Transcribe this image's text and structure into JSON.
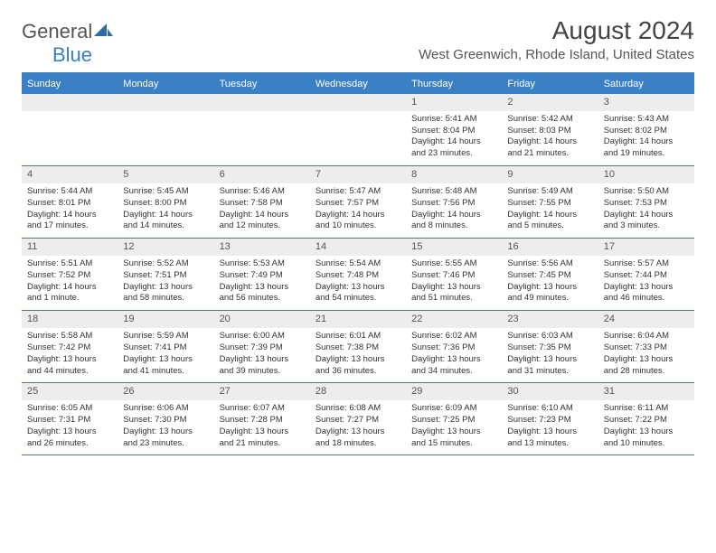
{
  "brand": {
    "part1": "General",
    "part2": "Blue"
  },
  "title": "August 2024",
  "location": "West Greenwich, Rhode Island, United States",
  "colors": {
    "header_bg": "#3b7fc4",
    "header_text": "#ffffff",
    "daynum_bg": "#ededed",
    "border": "#3b7fc4",
    "body_text": "#333333",
    "logo_gray": "#555555",
    "logo_blue": "#3a7fbf"
  },
  "day_names": [
    "Sunday",
    "Monday",
    "Tuesday",
    "Wednesday",
    "Thursday",
    "Friday",
    "Saturday"
  ],
  "weeks": [
    [
      {
        "n": "",
        "sunrise": "",
        "sunset": "",
        "daylight": ""
      },
      {
        "n": "",
        "sunrise": "",
        "sunset": "",
        "daylight": ""
      },
      {
        "n": "",
        "sunrise": "",
        "sunset": "",
        "daylight": ""
      },
      {
        "n": "",
        "sunrise": "",
        "sunset": "",
        "daylight": ""
      },
      {
        "n": "1",
        "sunrise": "Sunrise: 5:41 AM",
        "sunset": "Sunset: 8:04 PM",
        "daylight": "Daylight: 14 hours and 23 minutes."
      },
      {
        "n": "2",
        "sunrise": "Sunrise: 5:42 AM",
        "sunset": "Sunset: 8:03 PM",
        "daylight": "Daylight: 14 hours and 21 minutes."
      },
      {
        "n": "3",
        "sunrise": "Sunrise: 5:43 AM",
        "sunset": "Sunset: 8:02 PM",
        "daylight": "Daylight: 14 hours and 19 minutes."
      }
    ],
    [
      {
        "n": "4",
        "sunrise": "Sunrise: 5:44 AM",
        "sunset": "Sunset: 8:01 PM",
        "daylight": "Daylight: 14 hours and 17 minutes."
      },
      {
        "n": "5",
        "sunrise": "Sunrise: 5:45 AM",
        "sunset": "Sunset: 8:00 PM",
        "daylight": "Daylight: 14 hours and 14 minutes."
      },
      {
        "n": "6",
        "sunrise": "Sunrise: 5:46 AM",
        "sunset": "Sunset: 7:58 PM",
        "daylight": "Daylight: 14 hours and 12 minutes."
      },
      {
        "n": "7",
        "sunrise": "Sunrise: 5:47 AM",
        "sunset": "Sunset: 7:57 PM",
        "daylight": "Daylight: 14 hours and 10 minutes."
      },
      {
        "n": "8",
        "sunrise": "Sunrise: 5:48 AM",
        "sunset": "Sunset: 7:56 PM",
        "daylight": "Daylight: 14 hours and 8 minutes."
      },
      {
        "n": "9",
        "sunrise": "Sunrise: 5:49 AM",
        "sunset": "Sunset: 7:55 PM",
        "daylight": "Daylight: 14 hours and 5 minutes."
      },
      {
        "n": "10",
        "sunrise": "Sunrise: 5:50 AM",
        "sunset": "Sunset: 7:53 PM",
        "daylight": "Daylight: 14 hours and 3 minutes."
      }
    ],
    [
      {
        "n": "11",
        "sunrise": "Sunrise: 5:51 AM",
        "sunset": "Sunset: 7:52 PM",
        "daylight": "Daylight: 14 hours and 1 minute."
      },
      {
        "n": "12",
        "sunrise": "Sunrise: 5:52 AM",
        "sunset": "Sunset: 7:51 PM",
        "daylight": "Daylight: 13 hours and 58 minutes."
      },
      {
        "n": "13",
        "sunrise": "Sunrise: 5:53 AM",
        "sunset": "Sunset: 7:49 PM",
        "daylight": "Daylight: 13 hours and 56 minutes."
      },
      {
        "n": "14",
        "sunrise": "Sunrise: 5:54 AM",
        "sunset": "Sunset: 7:48 PM",
        "daylight": "Daylight: 13 hours and 54 minutes."
      },
      {
        "n": "15",
        "sunrise": "Sunrise: 5:55 AM",
        "sunset": "Sunset: 7:46 PM",
        "daylight": "Daylight: 13 hours and 51 minutes."
      },
      {
        "n": "16",
        "sunrise": "Sunrise: 5:56 AM",
        "sunset": "Sunset: 7:45 PM",
        "daylight": "Daylight: 13 hours and 49 minutes."
      },
      {
        "n": "17",
        "sunrise": "Sunrise: 5:57 AM",
        "sunset": "Sunset: 7:44 PM",
        "daylight": "Daylight: 13 hours and 46 minutes."
      }
    ],
    [
      {
        "n": "18",
        "sunrise": "Sunrise: 5:58 AM",
        "sunset": "Sunset: 7:42 PM",
        "daylight": "Daylight: 13 hours and 44 minutes."
      },
      {
        "n": "19",
        "sunrise": "Sunrise: 5:59 AM",
        "sunset": "Sunset: 7:41 PM",
        "daylight": "Daylight: 13 hours and 41 minutes."
      },
      {
        "n": "20",
        "sunrise": "Sunrise: 6:00 AM",
        "sunset": "Sunset: 7:39 PM",
        "daylight": "Daylight: 13 hours and 39 minutes."
      },
      {
        "n": "21",
        "sunrise": "Sunrise: 6:01 AM",
        "sunset": "Sunset: 7:38 PM",
        "daylight": "Daylight: 13 hours and 36 minutes."
      },
      {
        "n": "22",
        "sunrise": "Sunrise: 6:02 AM",
        "sunset": "Sunset: 7:36 PM",
        "daylight": "Daylight: 13 hours and 34 minutes."
      },
      {
        "n": "23",
        "sunrise": "Sunrise: 6:03 AM",
        "sunset": "Sunset: 7:35 PM",
        "daylight": "Daylight: 13 hours and 31 minutes."
      },
      {
        "n": "24",
        "sunrise": "Sunrise: 6:04 AM",
        "sunset": "Sunset: 7:33 PM",
        "daylight": "Daylight: 13 hours and 28 minutes."
      }
    ],
    [
      {
        "n": "25",
        "sunrise": "Sunrise: 6:05 AM",
        "sunset": "Sunset: 7:31 PM",
        "daylight": "Daylight: 13 hours and 26 minutes."
      },
      {
        "n": "26",
        "sunrise": "Sunrise: 6:06 AM",
        "sunset": "Sunset: 7:30 PM",
        "daylight": "Daylight: 13 hours and 23 minutes."
      },
      {
        "n": "27",
        "sunrise": "Sunrise: 6:07 AM",
        "sunset": "Sunset: 7:28 PM",
        "daylight": "Daylight: 13 hours and 21 minutes."
      },
      {
        "n": "28",
        "sunrise": "Sunrise: 6:08 AM",
        "sunset": "Sunset: 7:27 PM",
        "daylight": "Daylight: 13 hours and 18 minutes."
      },
      {
        "n": "29",
        "sunrise": "Sunrise: 6:09 AM",
        "sunset": "Sunset: 7:25 PM",
        "daylight": "Daylight: 13 hours and 15 minutes."
      },
      {
        "n": "30",
        "sunrise": "Sunrise: 6:10 AM",
        "sunset": "Sunset: 7:23 PM",
        "daylight": "Daylight: 13 hours and 13 minutes."
      },
      {
        "n": "31",
        "sunrise": "Sunrise: 6:11 AM",
        "sunset": "Sunset: 7:22 PM",
        "daylight": "Daylight: 13 hours and 10 minutes."
      }
    ]
  ]
}
